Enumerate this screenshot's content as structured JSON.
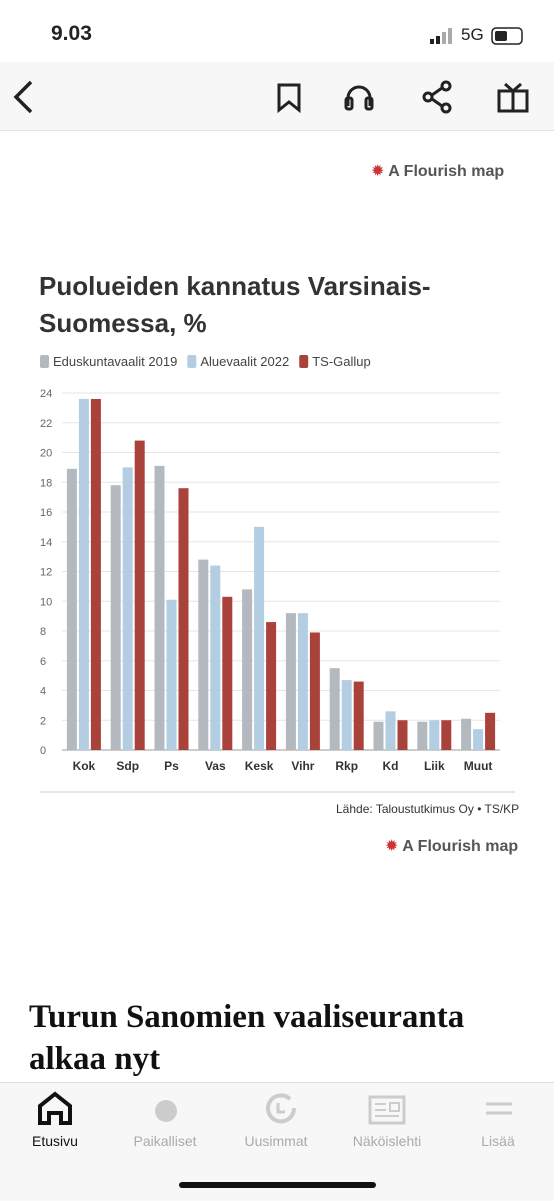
{
  "status_bar": {
    "time": "9.03",
    "network": "5G"
  },
  "flourish_credit_top": "A Flourish map",
  "chart_data": {
    "type": "bar",
    "title": "Puolueiden kannatus Varsinais-Suomessa, %",
    "categories": [
      "Kok",
      "Sdp",
      "Ps",
      "Vas",
      "Kesk",
      "Vihr",
      "Rkp",
      "Kd",
      "Liik",
      "Muut"
    ],
    "series": [
      {
        "name": "Eduskuntavaalit 2019",
        "color": "#b4b9c0",
        "values": [
          18.9,
          17.8,
          19.1,
          12.8,
          10.8,
          9.2,
          5.5,
          1.9,
          1.9,
          2.1
        ]
      },
      {
        "name": "Aluevaalit 2022",
        "color": "#b3cde2",
        "values": [
          23.6,
          19.0,
          10.1,
          12.4,
          15.0,
          9.2,
          4.7,
          2.6,
          2.0,
          1.4
        ]
      },
      {
        "name": "TS-Gallup",
        "color": "#a8423a",
        "values": [
          23.6,
          20.8,
          17.6,
          10.3,
          8.6,
          7.9,
          4.6,
          2.0,
          2.0,
          2.5
        ]
      }
    ],
    "ylim": [
      0,
      24
    ],
    "yticks": [
      0,
      2,
      4,
      6,
      8,
      10,
      12,
      14,
      16,
      18,
      20,
      22,
      24
    ],
    "grid": true,
    "source": "Lähde: Taloustutkimus Oy • TS/KP"
  },
  "flourish_credit_bottom": "A Flourish map",
  "headline": "Turun Sanomien vaaliseuranta alkaa nyt",
  "tab_bar": [
    "Etusivu",
    "Paikalliset",
    "Uusimmat",
    "Näköislehti",
    "Lisää"
  ]
}
